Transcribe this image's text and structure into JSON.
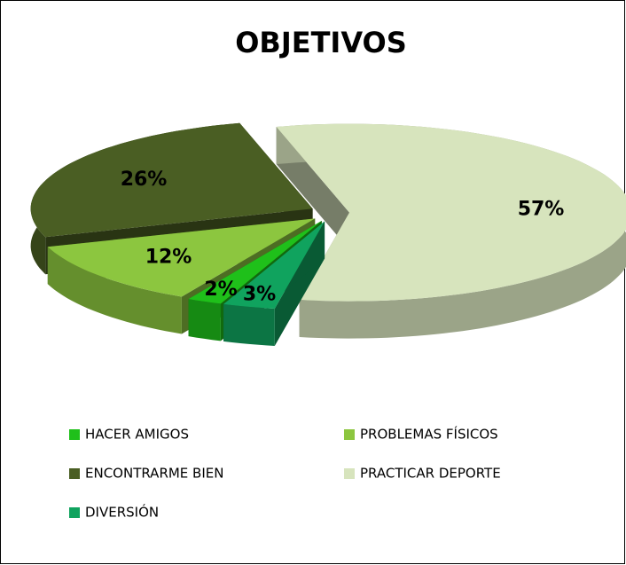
{
  "chart_data": {
    "type": "pie3d",
    "title": "OBJETIVOS",
    "categories": [
      "HACER AMIGOS",
      "PROBLEMAS FÍSICOS",
      "ENCONTRARME BIEN",
      "PRACTICAR DEPORTE",
      "DIVERSIÓN"
    ],
    "values": [
      2,
      12,
      26,
      57,
      3
    ],
    "value_labels": [
      "2%",
      "12%",
      "26%",
      "57%",
      "3%"
    ],
    "colors": [
      "#1fc01a",
      "#8cc63f",
      "#4a5e23",
      "#d7e4bd",
      "#10a35e"
    ],
    "legend": "bottom"
  }
}
